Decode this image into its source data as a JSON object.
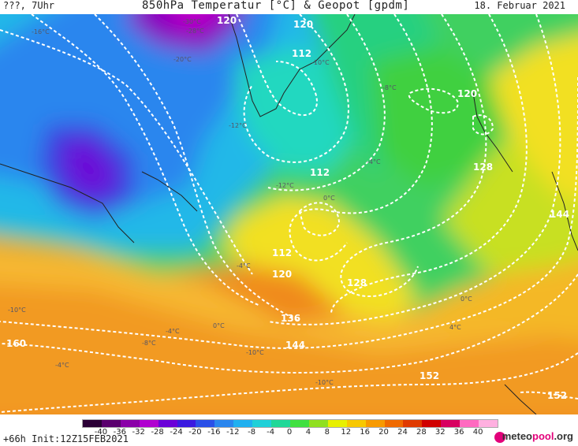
{
  "header": {
    "run_info": "???, 7Uhr",
    "title": "850hPa Temperatur [°C] & Geopot [gpdm]",
    "date": "18. Februar 2021"
  },
  "footer": {
    "init": "+66h  Init:12Z15FEB2021",
    "brand_prefix": "meteo",
    "brand_accent": "pool",
    "brand_suffix": ".org"
  },
  "color_scale": {
    "tick_labels": [
      "-40",
      "-36",
      "-32",
      "-28",
      "-24",
      "-20",
      "-16",
      "-12",
      "-8",
      "-4",
      "0",
      "4",
      "8",
      "12",
      "16",
      "20",
      "24",
      "28",
      "32",
      "36",
      "40"
    ],
    "colors": [
      "#2b0036",
      "#5a006e",
      "#8a00a8",
      "#b000d0",
      "#6a00d8",
      "#3a1ae0",
      "#2a50e8",
      "#2a86ee",
      "#20b0f0",
      "#20d0d8",
      "#20d898",
      "#40e040",
      "#90e020",
      "#e8f000",
      "#f8c800",
      "#f89a00",
      "#f06a00",
      "#e03a00",
      "#d00000",
      "#d80060",
      "#ff6ac0",
      "#ffb0e0"
    ]
  },
  "contour_labels": [
    "120",
    "112",
    "120",
    "112",
    "120",
    "128",
    "112",
    "112",
    "120",
    "128",
    "136",
    "144",
    "152",
    "160",
    "144",
    "152"
  ],
  "temp_labels": [
    "-30°C",
    "-28°C",
    "-20°C",
    "-16°C",
    "-12°C",
    "-10°C",
    "-8°C",
    "-4°C",
    "0°C",
    "0°C",
    "4°C",
    "-4°C",
    "-8°C",
    "-10°C",
    "0°C",
    "-4°C",
    "-10°C",
    "-12°C",
    "-10°C",
    "-4°C"
  ]
}
